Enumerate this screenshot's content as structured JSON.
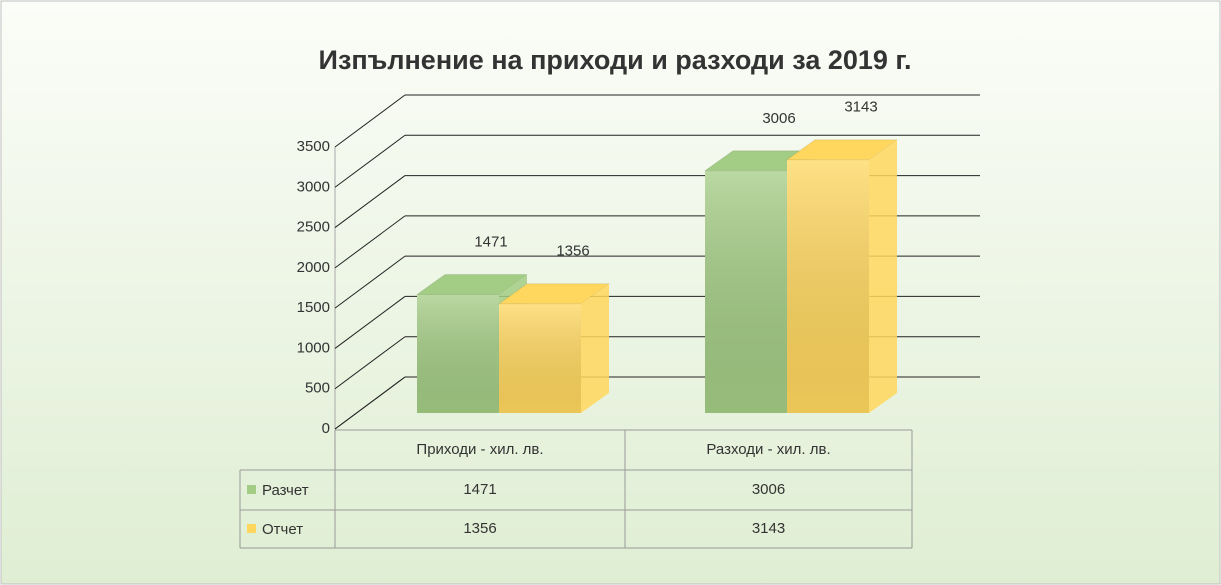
{
  "chart_data": {
    "type": "bar",
    "title": "Изпълнение на приходи и разходи за 2019 г.",
    "categories": [
      "Приходи - хил. лв.",
      "Разходи - хил. лв."
    ],
    "series": [
      {
        "name": "Разчет",
        "color": "#a3cc84",
        "values": [
          1471,
          3006
        ]
      },
      {
        "name": "Отчет",
        "color": "#ffd75e",
        "values": [
          1356,
          3143
        ]
      }
    ],
    "ylim": [
      0,
      3500
    ],
    "yticks": [
      0,
      500,
      1000,
      1500,
      2000,
      2500,
      3000,
      3500
    ],
    "grid": true,
    "data_table": true
  }
}
